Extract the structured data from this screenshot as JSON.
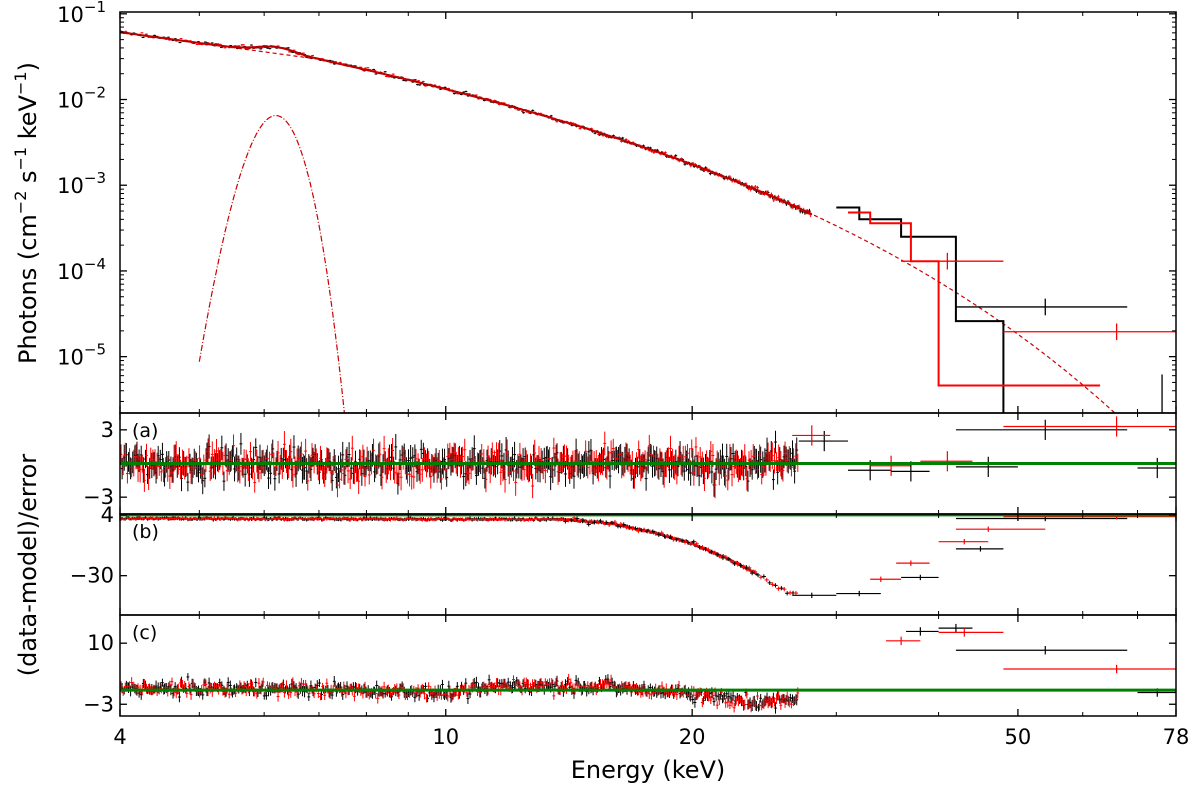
{
  "colors": {
    "data_a": "#000000",
    "data_b": "#ff0000",
    "zero_line": "#008000"
  },
  "chart_data": [
    {
      "type": "scatter",
      "panel": "spectrum",
      "xscale": "log",
      "yscale": "log",
      "xlim": [
        4,
        78
      ],
      "ylim": [
        2.2e-06,
        0.105
      ],
      "xlabel": "Energy (keV)",
      "ylabel": "Photons (cm−2 s−1 keV−1)",
      "ylabel_parts": {
        "a": "Photons (cm",
        "b": "−2",
        "c": " s",
        "d": "−1",
        "e": " keV",
        "f": "−1",
        "g": ")"
      },
      "y_ticks": [
        {
          "value": 0.1,
          "base": "10",
          "exp": "−1"
        },
        {
          "value": 0.01,
          "base": "10",
          "exp": "−2"
        },
        {
          "value": 0.001,
          "base": "10",
          "exp": "−3"
        },
        {
          "value": 0.0001,
          "base": "10",
          "exp": "−4"
        },
        {
          "value": 1e-05,
          "base": "10",
          "exp": "−5"
        }
      ],
      "model": {
        "continuum_norm": 0.061,
        "photon_index": 1.3,
        "cutoff_energy_keV": 8.9,
        "cutoff_start_keV": 7.0,
        "line_energy_keV": 6.2,
        "line_sigma_keV": 0.33,
        "line_peak": 0.0065
      },
      "binned_steps": [
        {
          "series": "black",
          "edges": [
            30,
            32,
            36,
            42,
            48,
            63
          ],
          "values": [
            0.00055,
            0.0004,
            0.00025,
            2.6e-05,
            1e-06
          ]
        },
        {
          "series": "red",
          "edges": [
            31,
            33,
            37,
            40,
            52,
            63
          ],
          "values": [
            0.00048,
            0.00036,
            0.00013,
            4.6e-06,
            4.6e-06
          ]
        }
      ],
      "wide_bins": [
        {
          "series": "black",
          "x": 54,
          "x_lo": 42,
          "x_hi": 68,
          "y": 3.8e-05
        },
        {
          "series": "red",
          "x": 66,
          "x_lo": 48,
          "x_hi": 78,
          "y": 1.95e-05
        },
        {
          "series": "red",
          "x": 41,
          "x_lo": 36,
          "x_hi": 48,
          "y": 0.00013
        },
        {
          "series": "black",
          "x": 75,
          "x_lo": 75,
          "x_hi": 75,
          "y": 1.5e-06
        }
      ]
    },
    {
      "type": "scatter",
      "panel": "residuals",
      "tag": "(a)",
      "xscale": "log",
      "ylim": [
        -4.5,
        4.5
      ],
      "y_ticks": [
        {
          "value": 3,
          "label": "3"
        },
        {
          "value": -3,
          "label": "−3"
        }
      ],
      "zero_line": 0,
      "profile": [
        [
          4,
          0
        ],
        [
          78,
          0
        ]
      ],
      "outliers": [
        {
          "series": "black",
          "x": 54,
          "x_lo": 42,
          "x_hi": 68,
          "y": 3.0
        },
        {
          "series": "red",
          "x": 66,
          "x_lo": 48,
          "x_hi": 78,
          "y": 3.3
        },
        {
          "series": "black",
          "x": 46,
          "x_lo": 42,
          "x_hi": 50,
          "y": -0.3
        },
        {
          "series": "red",
          "x": 41,
          "x_lo": 38,
          "x_hi": 44,
          "y": 0.2
        },
        {
          "series": "black",
          "x": 74,
          "x_lo": 70,
          "x_hi": 78,
          "y": -0.4
        },
        {
          "series": "black",
          "x": 29,
          "x_lo": 27,
          "x_hi": 31,
          "y": 2.0
        },
        {
          "series": "red",
          "x": 28,
          "x_lo": 26.5,
          "x_hi": 29.5,
          "y": 2.5
        },
        {
          "series": "black",
          "x": 33,
          "x_lo": 31,
          "x_hi": 35,
          "y": -0.6
        },
        {
          "series": "red",
          "x": 35,
          "x_lo": 33,
          "x_hi": 37,
          "y": -0.2
        },
        {
          "series": "black",
          "x": 37,
          "x_lo": 35,
          "x_hi": 39,
          "y": -0.7
        }
      ]
    },
    {
      "type": "scatter",
      "panel": "residuals",
      "tag": "(b)",
      "xscale": "log",
      "ylim": [
        -52,
        4.5
      ],
      "y_ticks": [
        {
          "value": 4,
          "label": "4"
        },
        {
          "value": -30,
          "label": "−30"
        }
      ],
      "zero_line": 4,
      "profile": [
        [
          4,
          2
        ],
        [
          14,
          1.5
        ],
        [
          16,
          -1
        ],
        [
          18,
          -6
        ],
        [
          20,
          -12
        ],
        [
          22,
          -20
        ],
        [
          24,
          -29
        ],
        [
          25.5,
          -37
        ],
        [
          26.5,
          -40
        ],
        [
          28,
          -41
        ],
        [
          30,
          -39
        ],
        [
          32,
          -35
        ],
        [
          34,
          -28
        ],
        [
          36,
          -22
        ],
        [
          38,
          -15
        ],
        [
          42,
          -6
        ],
        [
          48,
          0
        ],
        [
          55,
          2
        ],
        [
          78,
          2
        ]
      ],
      "outliers": [
        {
          "series": "black",
          "x": 28,
          "x_lo": 26.5,
          "x_hi": 30,
          "y": -41
        },
        {
          "series": "black",
          "x": 32,
          "x_lo": 30,
          "x_hi": 34,
          "y": -40
        },
        {
          "series": "red",
          "x": 34,
          "x_lo": 33,
          "x_hi": 36,
          "y": -32
        },
        {
          "series": "black",
          "x": 38,
          "x_lo": 36,
          "x_hi": 40,
          "y": -31
        },
        {
          "series": "red",
          "x": 37,
          "x_lo": 35.5,
          "x_hi": 39,
          "y": -23
        },
        {
          "series": "red",
          "x": 43,
          "x_lo": 40,
          "x_hi": 46,
          "y": -11
        },
        {
          "series": "black",
          "x": 45,
          "x_lo": 42,
          "x_hi": 48,
          "y": -15
        },
        {
          "series": "red",
          "x": 46,
          "x_lo": 42,
          "x_hi": 54,
          "y": -4
        },
        {
          "series": "black",
          "x": 54,
          "x_lo": 42,
          "x_hi": 68,
          "y": 2
        },
        {
          "series": "red",
          "x": 66,
          "x_lo": 48,
          "x_hi": 78,
          "y": 3
        }
      ]
    },
    {
      "type": "scatter",
      "panel": "residuals",
      "tag": "(c)",
      "xscale": "log",
      "ylim": [
        -5.5,
        16
      ],
      "y_ticks": [
        {
          "value": 10,
          "label": "10"
        },
        {
          "value": -3,
          "label": "−3"
        }
      ],
      "zero_line": 0,
      "profile": [
        [
          4,
          0.5
        ],
        [
          7,
          0.2
        ],
        [
          10,
          -0.5
        ],
        [
          12,
          1.0
        ],
        [
          15,
          1.0
        ],
        [
          18,
          0
        ],
        [
          21,
          -1.2
        ],
        [
          24,
          -2.4
        ],
        [
          26,
          -2.4
        ],
        [
          28,
          0
        ],
        [
          30,
          2
        ],
        [
          33,
          6
        ],
        [
          36,
          9
        ],
        [
          40,
          12
        ],
        [
          44,
          13
        ],
        [
          48,
          12
        ],
        [
          78,
          12
        ]
      ],
      "outliers": [
        {
          "series": "red",
          "x": 36,
          "x_lo": 34.5,
          "x_hi": 38,
          "y": 10.5
        },
        {
          "series": "black",
          "x": 38,
          "x_lo": 36.5,
          "x_hi": 40,
          "y": 12.5
        },
        {
          "series": "black",
          "x": 42,
          "x_lo": 40,
          "x_hi": 44,
          "y": 13.2
        },
        {
          "series": "red",
          "x": 43,
          "x_lo": 40,
          "x_hi": 48,
          "y": 12.3
        },
        {
          "series": "black",
          "x": 54,
          "x_lo": 42,
          "x_hi": 68,
          "y": 8.5
        },
        {
          "series": "red",
          "x": 66,
          "x_lo": 48,
          "x_hi": 78,
          "y": 4.5
        },
        {
          "series": "black",
          "x": 74,
          "x_lo": 70,
          "x_hi": 78,
          "y": -0.5
        }
      ]
    }
  ],
  "x_ticks": [
    {
      "value": 4,
      "label": "4"
    },
    {
      "value": 10,
      "label": "10"
    },
    {
      "value": 20,
      "label": "20"
    },
    {
      "value": 50,
      "label": "50"
    },
    {
      "value": 78,
      "label": "78"
    }
  ],
  "x_minor_ticks": [
    5,
    6,
    7,
    8,
    9,
    30,
    40,
    60,
    70
  ],
  "xlabel": "Energy (keV)",
  "residual_ylabel": "(data-model)/error"
}
